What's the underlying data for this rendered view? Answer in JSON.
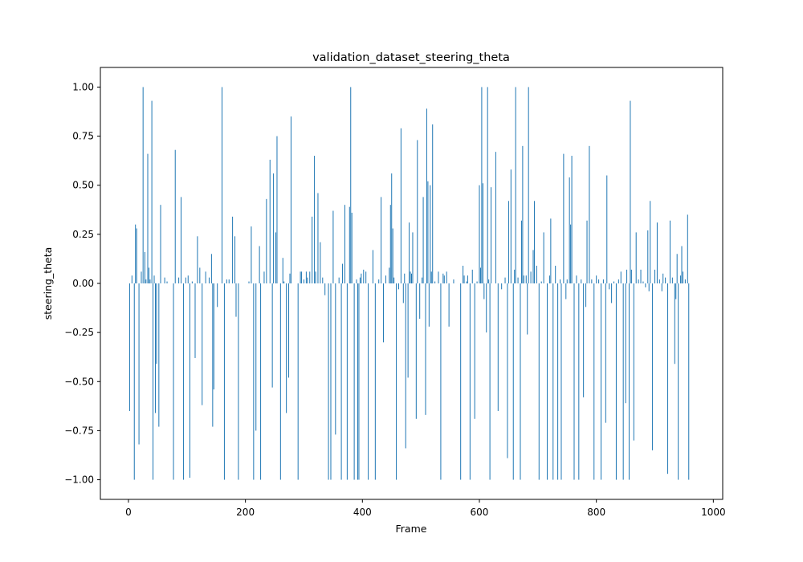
{
  "chart_data": {
    "type": "bar",
    "title": "validation_dataset_steering_theta",
    "xlabel": "Frame",
    "ylabel": "steering_theta",
    "xlim": [
      -48,
      1016
    ],
    "ylim": [
      -1.1,
      1.1
    ],
    "xticks": [
      0,
      200,
      400,
      600,
      800,
      1000
    ],
    "xtick_labels": [
      "0",
      "200",
      "400",
      "600",
      "800",
      "1000"
    ],
    "yticks": [
      -1.0,
      -0.75,
      -0.5,
      -0.25,
      0.0,
      0.25,
      0.5,
      0.75,
      1.0
    ],
    "ytick_labels": [
      "−1.00",
      "−0.75",
      "−0.50",
      "−0.25",
      "0.00",
      "0.25",
      "0.50",
      "0.75",
      "1.00"
    ],
    "grid": false,
    "bar_color": "#1f77b4",
    "points": [
      [
        2,
        -0.65
      ],
      [
        6,
        0.04
      ],
      [
        10,
        -1.0
      ],
      [
        12,
        0.3
      ],
      [
        14,
        0.28
      ],
      [
        18,
        -0.82
      ],
      [
        22,
        0.06
      ],
      [
        25,
        1.0
      ],
      [
        28,
        0.16
      ],
      [
        30,
        0.02
      ],
      [
        33,
        0.66
      ],
      [
        35,
        0.08
      ],
      [
        37,
        0.02
      ],
      [
        40,
        0.93
      ],
      [
        42,
        -1.0
      ],
      [
        44,
        0.04
      ],
      [
        46,
        -0.66
      ],
      [
        48,
        -0.41
      ],
      [
        52,
        -0.73
      ],
      [
        55,
        0.4
      ],
      [
        62,
        0.03
      ],
      [
        66,
        0.01
      ],
      [
        77,
        -1.0
      ],
      [
        80,
        0.68
      ],
      [
        86,
        0.03
      ],
      [
        90,
        0.44
      ],
      [
        94,
        -1.0
      ],
      [
        98,
        0.03
      ],
      [
        102,
        0.04
      ],
      [
        105,
        -0.99
      ],
      [
        109,
        0.01
      ],
      [
        114,
        -0.38
      ],
      [
        118,
        0.24
      ],
      [
        122,
        0.08
      ],
      [
        126,
        -0.62
      ],
      [
        132,
        0.06
      ],
      [
        138,
        0.03
      ],
      [
        142,
        0.15
      ],
      [
        144,
        -0.73
      ],
      [
        146,
        -0.54
      ],
      [
        152,
        -0.12
      ],
      [
        160,
        1.0
      ],
      [
        164,
        -1.0
      ],
      [
        168,
        0.02
      ],
      [
        172,
        0.02
      ],
      [
        178,
        0.34
      ],
      [
        182,
        0.24
      ],
      [
        184,
        -0.17
      ],
      [
        188,
        -1.0
      ],
      [
        206,
        0.01
      ],
      [
        210,
        0.29
      ],
      [
        214,
        -1.0
      ],
      [
        218,
        -0.75
      ],
      [
        224,
        0.19
      ],
      [
        226,
        -1.0
      ],
      [
        232,
        0.06
      ],
      [
        236,
        0.43
      ],
      [
        242,
        0.63
      ],
      [
        246,
        -0.53
      ],
      [
        248,
        0.56
      ],
      [
        252,
        0.26
      ],
      [
        254,
        0.75
      ],
      [
        260,
        -1.0
      ],
      [
        264,
        0.13
      ],
      [
        266,
        0.01
      ],
      [
        270,
        -0.66
      ],
      [
        274,
        -0.48
      ],
      [
        276,
        0.05
      ],
      [
        278,
        0.85
      ],
      [
        290,
        -1.0
      ],
      [
        294,
        0.06
      ],
      [
        296,
        0.06
      ],
      [
        300,
        0.02
      ],
      [
        304,
        0.06
      ],
      [
        306,
        0.03
      ],
      [
        310,
        0.06
      ],
      [
        314,
        0.34
      ],
      [
        318,
        0.65
      ],
      [
        320,
        0.06
      ],
      [
        324,
        0.46
      ],
      [
        328,
        0.21
      ],
      [
        332,
        0.03
      ],
      [
        336,
        -0.06
      ],
      [
        342,
        -1.0
      ],
      [
        346,
        -1.0
      ],
      [
        350,
        0.37
      ],
      [
        354,
        -0.77
      ],
      [
        360,
        0.03
      ],
      [
        364,
        -1.0
      ],
      [
        366,
        0.1
      ],
      [
        370,
        0.4
      ],
      [
        374,
        -1.0
      ],
      [
        378,
        0.39
      ],
      [
        380,
        1.0
      ],
      [
        382,
        0.36
      ],
      [
        386,
        -1.0
      ],
      [
        390,
        0.02
      ],
      [
        392,
        -1.0
      ],
      [
        394,
        -1.0
      ],
      [
        396,
        0.03
      ],
      [
        398,
        0.05
      ],
      [
        402,
        0.07
      ],
      [
        406,
        0.06
      ],
      [
        410,
        -1.0
      ],
      [
        418,
        0.17
      ],
      [
        422,
        -1.0
      ],
      [
        428,
        0.02
      ],
      [
        432,
        0.44
      ],
      [
        436,
        -0.3
      ],
      [
        440,
        0.04
      ],
      [
        446,
        0.08
      ],
      [
        448,
        0.4
      ],
      [
        450,
        0.56
      ],
      [
        452,
        0.28
      ],
      [
        454,
        0.03
      ],
      [
        458,
        -1.0
      ],
      [
        462,
        -0.03
      ],
      [
        466,
        0.79
      ],
      [
        470,
        -0.1
      ],
      [
        472,
        0.05
      ],
      [
        474,
        -0.84
      ],
      [
        478,
        -0.48
      ],
      [
        480,
        0.31
      ],
      [
        482,
        0.06
      ],
      [
        484,
        0.05
      ],
      [
        486,
        0.26
      ],
      [
        492,
        -0.69
      ],
      [
        494,
        0.73
      ],
      [
        498,
        -0.18
      ],
      [
        502,
        0.03
      ],
      [
        504,
        0.44
      ],
      [
        508,
        -0.67
      ],
      [
        510,
        0.89
      ],
      [
        512,
        0.52
      ],
      [
        514,
        -0.22
      ],
      [
        516,
        0.5
      ],
      [
        518,
        0.06
      ],
      [
        520,
        0.81
      ],
      [
        524,
        0.01
      ],
      [
        530,
        0.06
      ],
      [
        534,
        -1.0
      ],
      [
        538,
        0.05
      ],
      [
        540,
        0.04
      ],
      [
        544,
        0.06
      ],
      [
        548,
        -0.22
      ],
      [
        556,
        0.02
      ],
      [
        568,
        -1.0
      ],
      [
        572,
        0.09
      ],
      [
        574,
        0.04
      ],
      [
        578,
        0.01
      ],
      [
        580,
        0.04
      ],
      [
        584,
        -1.0
      ],
      [
        588,
        0.07
      ],
      [
        592,
        -0.69
      ],
      [
        596,
        0.01
      ],
      [
        600,
        0.5
      ],
      [
        602,
        0.08
      ],
      [
        604,
        1.0
      ],
      [
        606,
        0.51
      ],
      [
        608,
        -0.08
      ],
      [
        612,
        -0.25
      ],
      [
        614,
        1.0
      ],
      [
        616,
        0.02
      ],
      [
        618,
        -1.0
      ],
      [
        620,
        0.49
      ],
      [
        628,
        0.67
      ],
      [
        632,
        -0.65
      ],
      [
        638,
        -0.03
      ],
      [
        644,
        0.03
      ],
      [
        648,
        -0.89
      ],
      [
        650,
        0.42
      ],
      [
        654,
        0.58
      ],
      [
        658,
        -1.0
      ],
      [
        660,
        0.07
      ],
      [
        662,
        1.0
      ],
      [
        666,
        0.03
      ],
      [
        670,
        -1.0
      ],
      [
        672,
        0.32
      ],
      [
        674,
        0.7
      ],
      [
        676,
        0.04
      ],
      [
        680,
        0.04
      ],
      [
        682,
        -0.26
      ],
      [
        684,
        1.0
      ],
      [
        688,
        0.06
      ],
      [
        692,
        0.17
      ],
      [
        694,
        0.42
      ],
      [
        698,
        0.09
      ],
      [
        702,
        -1.0
      ],
      [
        706,
        0.01
      ],
      [
        710,
        0.26
      ],
      [
        716,
        -1.0
      ],
      [
        720,
        0.04
      ],
      [
        722,
        0.33
      ],
      [
        726,
        -1.0
      ],
      [
        730,
        0.09
      ],
      [
        734,
        -1.0
      ],
      [
        738,
        0.02
      ],
      [
        740,
        -1.0
      ],
      [
        744,
        0.66
      ],
      [
        748,
        -0.08
      ],
      [
        750,
        0.02
      ],
      [
        754,
        0.54
      ],
      [
        756,
        0.3
      ],
      [
        758,
        0.65
      ],
      [
        762,
        -1.0
      ],
      [
        766,
        0.04
      ],
      [
        770,
        -1.0
      ],
      [
        774,
        0.02
      ],
      [
        778,
        -0.58
      ],
      [
        782,
        -0.12
      ],
      [
        784,
        0.32
      ],
      [
        788,
        0.7
      ],
      [
        792,
        0.02
      ],
      [
        796,
        -1.0
      ],
      [
        800,
        0.04
      ],
      [
        804,
        0.02
      ],
      [
        808,
        -1.0
      ],
      [
        812,
        0.02
      ],
      [
        816,
        -0.71
      ],
      [
        818,
        0.55
      ],
      [
        822,
        -0.03
      ],
      [
        826,
        -0.1
      ],
      [
        830,
        0.01
      ],
      [
        834,
        -1.0
      ],
      [
        838,
        0.02
      ],
      [
        842,
        0.06
      ],
      [
        846,
        -1.0
      ],
      [
        850,
        -0.61
      ],
      [
        852,
        0.07
      ],
      [
        856,
        -1.0
      ],
      [
        858,
        0.93
      ],
      [
        860,
        0.07
      ],
      [
        864,
        -0.8
      ],
      [
        868,
        0.26
      ],
      [
        872,
        0.02
      ],
      [
        876,
        0.07
      ],
      [
        880,
        0.01
      ],
      [
        884,
        -0.02
      ],
      [
        888,
        0.27
      ],
      [
        890,
        -0.04
      ],
      [
        892,
        0.42
      ],
      [
        896,
        -0.85
      ],
      [
        900,
        0.07
      ],
      [
        904,
        0.31
      ],
      [
        908,
        0.02
      ],
      [
        912,
        -0.04
      ],
      [
        914,
        0.05
      ],
      [
        918,
        0.03
      ],
      [
        922,
        -0.97
      ],
      [
        926,
        0.32
      ],
      [
        930,
        0.03
      ],
      [
        934,
        -0.41
      ],
      [
        936,
        -0.08
      ],
      [
        938,
        0.15
      ],
      [
        940,
        -1.0
      ],
      [
        944,
        0.04
      ],
      [
        946,
        0.19
      ],
      [
        948,
        0.06
      ],
      [
        952,
        0.02
      ],
      [
        956,
        0.35
      ],
      [
        958,
        -1.0
      ]
    ]
  }
}
